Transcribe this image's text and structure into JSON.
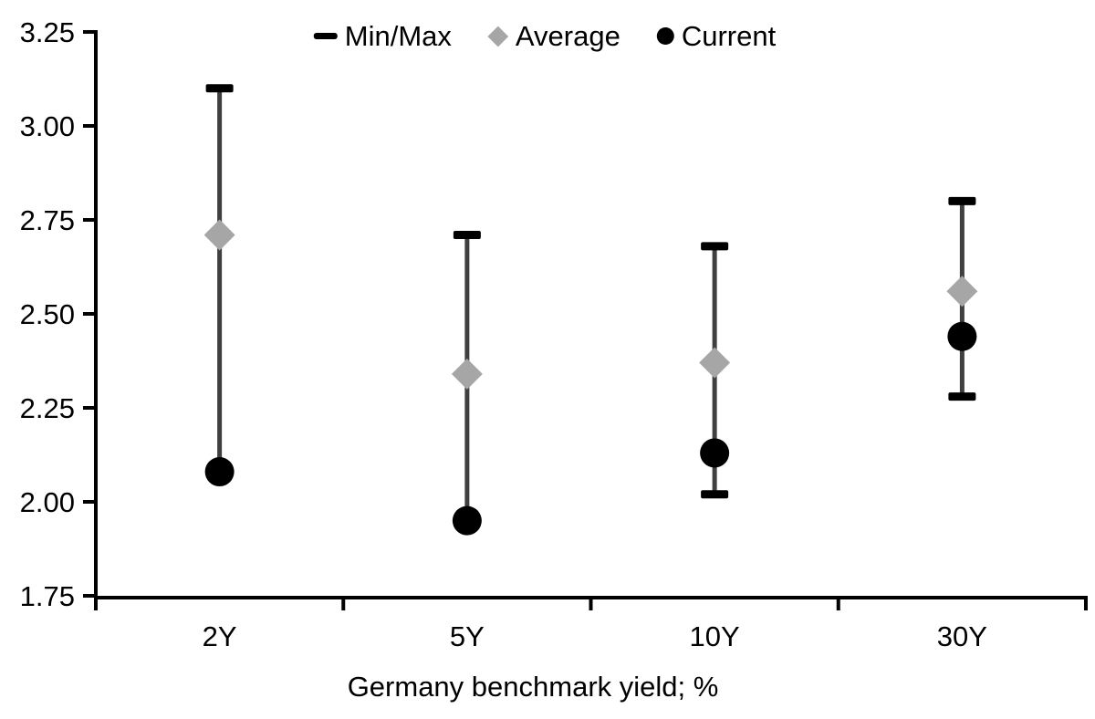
{
  "chart_data": {
    "type": "scatter",
    "title": "",
    "xlabel": "Germany benchmark yield; %",
    "ylabel": "",
    "categories": [
      "2Y",
      "5Y",
      "10Y",
      "30Y"
    ],
    "ylim": [
      1.75,
      3.25
    ],
    "yticks": [
      1.75,
      2.0,
      2.25,
      2.5,
      2.75,
      3.0,
      3.25
    ],
    "ytick_decimals": 2,
    "grid": false,
    "legend_position": "top-center",
    "legend": {
      "items": [
        {
          "label": "Min/Max",
          "marker": "dash"
        },
        {
          "label": "Average",
          "marker": "diamond"
        },
        {
          "label": "Current",
          "marker": "circle"
        }
      ]
    },
    "series": [
      {
        "name": "Min/Max",
        "type": "range",
        "max": [
          3.1,
          2.71,
          2.68,
          2.8
        ],
        "min": [
          2.08,
          1.95,
          2.02,
          2.28
        ],
        "min_cap_visible": [
          false,
          false,
          true,
          true
        ]
      },
      {
        "name": "Average",
        "type": "diamond",
        "values": [
          2.71,
          2.34,
          2.37,
          2.56
        ]
      },
      {
        "name": "Current",
        "type": "circle",
        "values": [
          2.08,
          1.95,
          2.13,
          2.44
        ]
      }
    ],
    "colors": {
      "cap": "#000000",
      "whisker": "#3f3f3f",
      "average": "#a6a6a6",
      "current": "#000000",
      "axis": "#000000",
      "text": "#000000",
      "background": "#ffffff"
    }
  }
}
